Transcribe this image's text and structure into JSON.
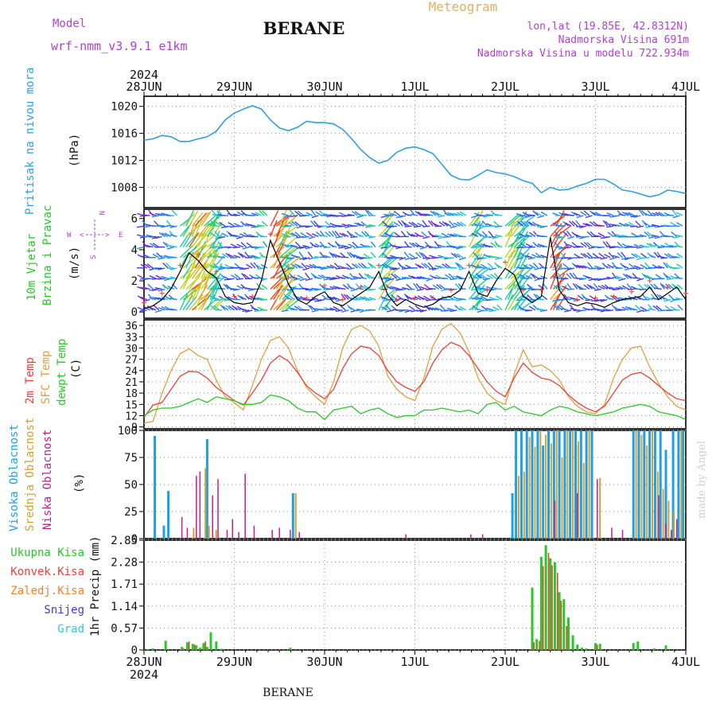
{
  "header": {
    "model_label": "Model",
    "model_name": "wrf-nmm_v3.9.1 e1km",
    "station": "BERANE",
    "product": "Meteogram",
    "lonlat": "lon,lat (19.85E, 42.8312N)",
    "elevation": "Nadmorska Visina 691m",
    "model_elevation": "Nadmorska Visina u modelu 722.934m",
    "footer_station": "BERANE",
    "credit": "made by Angel",
    "year": "2024"
  },
  "colors": {
    "pressure": "#2fa0e0",
    "temp2m": "#e8413a",
    "sfc": "#e0a040",
    "dewpoint": "#28c828",
    "cloud_high": "#1ea0e6",
    "cloud_mid": "#d4a030",
    "cloud_low": "#c0208c",
    "precip_total": "#28c828",
    "precip_conv": "#e8413a",
    "precip_frozen": "#f08030",
    "snow": "#4040c8",
    "graupel": "#30c8c8",
    "model_text": "#b040d0",
    "meteo_text": "#e0b060"
  },
  "time_axis": {
    "labels": [
      "28JUN",
      "29JUN",
      "30JUN",
      "1JUL",
      "2JUL",
      "3JUL",
      "4JUL"
    ],
    "days": 6
  },
  "panels": {
    "pressure": {
      "ylabel": "Pritisak na nivou mora",
      "unit": "(hPa)",
      "ticks": [
        "1008",
        "1012",
        "1016",
        "1020"
      ]
    },
    "wind": {
      "ylabel1": "10m Vjetar",
      "ylabel2": "Brzina i Pravac",
      "unit": "(m/s)",
      "ticks": [
        "0",
        "2",
        "4",
        "6"
      ],
      "compass": {
        "n": "N",
        "e": "E",
        "w": "W",
        "s": "S",
        "arrow_left": "<",
        "arrow_right": ">"
      }
    },
    "temperature": {
      "label_2m": "2m Temp",
      "label_sfc": "SFC Temp",
      "label_dew": "dewpt Temp",
      "unit": "(C)",
      "ticks": [
        "9",
        "12",
        "15",
        "18",
        "21",
        "24",
        "27",
        "30",
        "33",
        "36"
      ]
    },
    "clouds": {
      "label_high": "Visoka Oblacnost",
      "label_mid": "Srednja Oblacnost",
      "label_low": "Niska Oblacnost",
      "unit": "(%)",
      "ticks": [
        "0",
        "25",
        "50",
        "75",
        "100"
      ]
    },
    "precip": {
      "ylabel": "1hr Precip (mm)",
      "ticks": [
        "0",
        "0.57",
        "1.14",
        "1.71",
        "2.28",
        "2.85"
      ],
      "legend": [
        "Ukupna Kisa",
        "Konvek.Kisa",
        "Zaledj.Kisa",
        "Snijeg",
        "Grad"
      ]
    }
  },
  "chart_data": {
    "type": "line",
    "x_unit": "days since 28JUN 00 UTC",
    "pressure": {
      "ylim": [
        1005,
        1021.5
      ],
      "x": [
        0,
        0.1,
        0.2,
        0.3,
        0.4,
        0.5,
        0.6,
        0.7,
        0.8,
        0.9,
        1.0,
        1.1,
        1.2,
        1.3,
        1.4,
        1.5,
        1.6,
        1.7,
        1.8,
        1.9,
        2.0,
        2.1,
        2.2,
        2.3,
        2.4,
        2.5,
        2.6,
        2.7,
        2.8,
        2.9,
        3.0,
        3.1,
        3.2,
        3.3,
        3.4,
        3.5,
        3.6,
        3.7,
        3.8,
        3.9,
        4.0,
        4.1,
        4.2,
        4.3,
        4.4,
        4.5,
        4.6,
        4.7,
        4.8,
        4.9,
        5.0,
        5.1,
        5.2,
        5.3,
        5.4,
        5.5,
        5.6,
        5.7,
        5.8,
        5.9,
        6.0
      ],
      "values": [
        1015.0,
        1015.2,
        1015.7,
        1015.5,
        1014.8,
        1014.8,
        1015.2,
        1015.5,
        1016.3,
        1018.0,
        1019.0,
        1019.6,
        1020.1,
        1019.6,
        1018.0,
        1016.8,
        1016.4,
        1016.9,
        1017.8,
        1017.6,
        1017.6,
        1017.4,
        1016.6,
        1015.2,
        1013.6,
        1012.4,
        1011.6,
        1012.0,
        1013.2,
        1013.8,
        1014.0,
        1013.6,
        1013.0,
        1011.4,
        1009.8,
        1009.2,
        1009.1,
        1009.8,
        1010.6,
        1010.2,
        1010.0,
        1009.6,
        1009.0,
        1008.6,
        1007.2,
        1008.0,
        1007.6,
        1007.7,
        1008.2,
        1008.6,
        1009.2,
        1009.2,
        1008.5,
        1007.6,
        1007.4,
        1007.0,
        1006.6,
        1006.9,
        1007.6,
        1007.4,
        1007.1
      ]
    },
    "wind": {
      "ylim": [
        -0.4,
        6.6
      ],
      "x": [
        0,
        0.1,
        0.2,
        0.3,
        0.4,
        0.5,
        0.6,
        0.7,
        0.8,
        0.9,
        1.0,
        1.1,
        1.2,
        1.3,
        1.4,
        1.5,
        1.6,
        1.7,
        1.8,
        1.9,
        2.0,
        2.1,
        2.2,
        2.3,
        2.4,
        2.5,
        2.6,
        2.7,
        2.8,
        2.9,
        3.0,
        3.1,
        3.2,
        3.3,
        3.4,
        3.5,
        3.6,
        3.7,
        3.8,
        3.9,
        4.0,
        4.1,
        4.2,
        4.3,
        4.4,
        4.5,
        4.6,
        4.7,
        4.8,
        4.9,
        5.0,
        5.1,
        5.2,
        5.3,
        5.4,
        5.5,
        5.6,
        5.7,
        5.8,
        5.9,
        6.0
      ],
      "speed": [
        0.2,
        0.4,
        0.8,
        1.5,
        2.6,
        3.8,
        3.3,
        2.6,
        2.2,
        1.0,
        0.6,
        0.5,
        0.6,
        2.0,
        4.6,
        3.2,
        1.8,
        0.8,
        0.5,
        1.0,
        1.3,
        0.6,
        0.4,
        0.8,
        1.2,
        1.6,
        2.6,
        1.1,
        0.4,
        0.8,
        0.5,
        0.3,
        0.5,
        0.9,
        1.0,
        1.4,
        2.6,
        1.2,
        1.0,
        2.0,
        2.8,
        2.4,
        1.0,
        0.6,
        1.0,
        4.8,
        1.4,
        0.6,
        0.4,
        0.6,
        0.5,
        0.3,
        0.6,
        0.8,
        0.9,
        1.0,
        1.6,
        0.8,
        1.2,
        1.6,
        0.8
      ]
    },
    "temperature": {
      "ylim": [
        8.5,
        37.5
      ],
      "x": [
        0,
        0.1,
        0.2,
        0.3,
        0.4,
        0.5,
        0.6,
        0.7,
        0.8,
        0.9,
        1.0,
        1.1,
        1.2,
        1.3,
        1.4,
        1.5,
        1.6,
        1.7,
        1.8,
        1.9,
        2.0,
        2.1,
        2.2,
        2.3,
        2.4,
        2.5,
        2.6,
        2.7,
        2.8,
        2.9,
        3.0,
        3.1,
        3.2,
        3.3,
        3.4,
        3.5,
        3.6,
        3.7,
        3.8,
        3.9,
        4.0,
        4.1,
        4.2,
        4.3,
        4.4,
        4.5,
        4.6,
        4.7,
        4.8,
        4.9,
        5.0,
        5.1,
        5.2,
        5.3,
        5.4,
        5.5,
        5.6,
        5.7,
        5.8,
        5.9,
        6.0
      ],
      "t2m": [
        11.5,
        14.8,
        15.5,
        19.0,
        22.5,
        23.8,
        23.6,
        22.0,
        19.5,
        17.8,
        16.0,
        14.8,
        18.0,
        21.5,
        26.0,
        28.0,
        26.5,
        23.5,
        20.0,
        18.0,
        16.5,
        19.0,
        24.5,
        28.5,
        30.5,
        30.0,
        28.0,
        24.0,
        21.0,
        19.5,
        18.5,
        21.0,
        26.0,
        29.5,
        31.5,
        30.5,
        28.0,
        24.5,
        21.0,
        18.5,
        17.0,
        22.0,
        26.0,
        23.5,
        22.0,
        21.5,
        20.0,
        17.5,
        15.5,
        14.0,
        13.0,
        14.5,
        18.0,
        21.5,
        23.0,
        23.5,
        22.0,
        20.0,
        18.0,
        16.5,
        16.0
      ],
      "tsfc": [
        10.0,
        10.5,
        18.0,
        24.0,
        28.5,
        29.8,
        28.0,
        27.0,
        21.5,
        17.0,
        15.5,
        13.5,
        20.0,
        27.0,
        32.0,
        33.0,
        30.0,
        24.0,
        19.5,
        17.0,
        15.0,
        21.0,
        30.0,
        35.0,
        36.0,
        34.5,
        30.5,
        22.5,
        19.0,
        17.0,
        16.0,
        22.0,
        30.5,
        35.0,
        36.5,
        34.0,
        29.0,
        22.0,
        18.0,
        16.0,
        15.0,
        23.0,
        29.5,
        25.0,
        25.5,
        24.0,
        21.5,
        17.0,
        14.5,
        13.0,
        12.5,
        15.0,
        22.0,
        27.0,
        30.0,
        30.5,
        25.0,
        20.5,
        17.0,
        14.5,
        13.5
      ],
      "tdew": [
        12.0,
        13.5,
        14.0,
        14.0,
        14.5,
        15.5,
        16.5,
        15.5,
        17.0,
        16.5,
        16.0,
        15.0,
        15.0,
        15.5,
        17.5,
        17.0,
        16.0,
        14.0,
        13.0,
        13.0,
        11.0,
        13.5,
        14.0,
        14.5,
        12.5,
        13.5,
        14.0,
        12.5,
        11.5,
        12.0,
        12.0,
        13.5,
        13.5,
        14.0,
        13.5,
        13.0,
        13.5,
        12.5,
        15.0,
        15.5,
        13.5,
        14.5,
        13.0,
        12.5,
        12.0,
        13.5,
        14.5,
        14.0,
        13.0,
        12.5,
        12.0,
        12.5,
        13.0,
        14.0,
        14.5,
        15.0,
        14.5,
        13.0,
        12.5,
        12.0,
        11.0
      ]
    },
    "clouds": {
      "ylim": [
        0,
        100
      ],
      "high": {
        "x": [
          0.12,
          0.22,
          0.27,
          0.7,
          1.65,
          4.08,
          4.12,
          4.18,
          4.24,
          4.3,
          4.36,
          4.42,
          4.48,
          4.54,
          4.6,
          4.66,
          4.72,
          4.78,
          4.84,
          4.9,
          4.96,
          5.42,
          5.48,
          5.54,
          5.6,
          5.66,
          5.72,
          5.78,
          5.86,
          5.92,
          5.97
        ],
        "values": [
          95,
          12,
          44,
          92,
          42,
          42,
          100,
          100,
          100,
          100,
          100,
          86,
          100,
          100,
          100,
          100,
          100,
          100,
          100,
          100,
          100,
          100,
          100,
          100,
          100,
          100,
          100,
          82,
          100,
          100,
          100
        ]
      },
      "mid": {
        "x": [
          0.55,
          0.68,
          0.72,
          0.8,
          1.68,
          4.15,
          4.21,
          4.27,
          4.33,
          4.39,
          4.45,
          4.51,
          4.57,
          4.63,
          4.69,
          4.75,
          4.81,
          4.87,
          4.93,
          5.05,
          5.45,
          5.51,
          5.57,
          5.63,
          5.69,
          5.75,
          5.81,
          5.87,
          5.95
        ],
        "values": [
          10,
          65,
          12,
          8,
          42,
          58,
          62,
          94,
          85,
          100,
          96,
          88,
          100,
          75,
          100,
          100,
          90,
          70,
          100,
          56,
          100,
          96,
          86,
          100,
          62,
          46,
          35,
          25,
          100
        ]
      },
      "low": {
        "x": [
          0.42,
          0.48,
          0.58,
          0.62,
          0.76,
          0.82,
          0.92,
          0.98,
          1.05,
          1.12,
          1.22,
          1.42,
          1.5,
          1.62,
          1.72,
          2.9,
          3.62,
          3.75,
          4.55,
          4.8,
          5.02,
          5.18,
          5.3,
          5.7,
          5.78,
          5.84,
          5.9
        ],
        "values": [
          20,
          10,
          58,
          62,
          40,
          55,
          8,
          18,
          6,
          60,
          12,
          8,
          10,
          8,
          6,
          4,
          4,
          4,
          35,
          42,
          55,
          10,
          8,
          40,
          14,
          8,
          18
        ]
      }
    },
    "precip": {
      "ylim": [
        0,
        2.85
      ],
      "total": {
        "x": [
          0.04,
          0.1,
          0.24,
          0.42,
          0.48,
          0.54,
          0.58,
          0.62,
          0.66,
          0.7,
          0.74,
          0.8,
          0.86,
          1.62,
          4.3,
          4.35,
          4.4,
          4.45,
          4.5,
          4.55,
          4.6,
          4.65,
          4.7,
          4.75,
          4.8,
          4.85,
          4.9,
          5.0,
          5.05,
          5.42,
          5.47,
          5.65,
          5.78
        ],
        "values": [
          0.02,
          0.04,
          0.24,
          0.08,
          0.2,
          0.16,
          0.12,
          0.06,
          0.18,
          0.08,
          0.46,
          0.22,
          0.03,
          0.06,
          1.62,
          0.28,
          2.42,
          2.72,
          2.38,
          2.28,
          1.5,
          1.32,
          0.84,
          0.38,
          0.14,
          0.06,
          0.04,
          0.18,
          0.16,
          0.18,
          0.22,
          0.04,
          0.12
        ]
      },
      "convective": {
        "x": [
          0.44,
          0.5,
          0.56,
          0.68,
          4.32,
          4.38,
          4.42,
          4.48,
          4.52,
          4.58,
          4.62,
          4.68,
          5.02
        ],
        "values": [
          0.04,
          0.22,
          0.14,
          0.22,
          0.2,
          0.24,
          2.18,
          2.52,
          2.2,
          2.0,
          1.28,
          0.62,
          0.14
        ]
      }
    }
  }
}
